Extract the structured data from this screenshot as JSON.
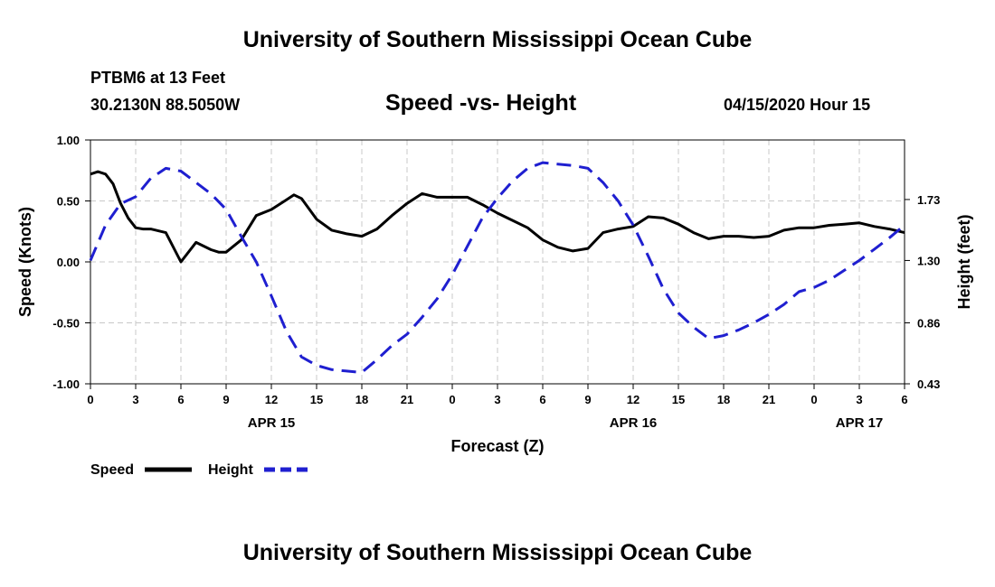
{
  "header": {
    "title": "University of Southern Mississippi Ocean Cube",
    "station": "PTBM6 at 13 Feet",
    "coords": "30.2130N 88.5050W",
    "subtitle": "Speed -vs- Height",
    "datetime": "04/15/2020 Hour 15"
  },
  "footer": {
    "title": "University of Southern Mississippi Ocean Cube"
  },
  "colors": {
    "speed": "#000000",
    "height": "#1f1fd0",
    "grid": "#c8c8c8"
  },
  "chart_data": {
    "type": "line",
    "title": "Speed -vs- Height",
    "xlabel": "Forecast (Z)",
    "ylabel": "Speed (Knots)",
    "y2label": "Height (feet)",
    "xlim": [
      0,
      54
    ],
    "ylim": [
      -1.0,
      1.0
    ],
    "y2lim": [
      0.43,
      2.15
    ],
    "x_ticks": [
      0,
      3,
      6,
      9,
      12,
      15,
      18,
      21,
      24,
      27,
      30,
      33,
      36,
      39,
      42,
      45,
      48,
      51,
      54
    ],
    "x_tick_labels": [
      "0",
      "3",
      "6",
      "9",
      "12",
      "15",
      "18",
      "21",
      "0",
      "3",
      "6",
      "9",
      "12",
      "15",
      "18",
      "21",
      "0",
      "3",
      "6"
    ],
    "y_ticks": [
      -1.0,
      -0.5,
      0.0,
      0.5,
      1.0
    ],
    "y_tick_labels": [
      "-1.00",
      "-0.50",
      "0.00",
      "0.50",
      "1.00"
    ],
    "y2_ticks": [
      0.43,
      0.86,
      1.3,
      1.73
    ],
    "y2_tick_labels": [
      "0.43",
      "0.86",
      "1.30",
      "1.73"
    ],
    "date_labels": [
      {
        "x": 12,
        "label": "APR 15"
      },
      {
        "x": 36,
        "label": "APR 16"
      },
      {
        "x": 51,
        "label": "APR 17"
      }
    ],
    "grid": true,
    "legend": {
      "position": "bottom-left"
    },
    "series": [
      {
        "name": "Speed",
        "axis": "left",
        "style": "solid",
        "x": [
          0,
          0.5,
          1,
          1.5,
          2,
          2.5,
          3,
          3.5,
          4,
          5,
          6,
          7,
          8,
          8.5,
          9,
          10,
          11,
          12,
          13,
          13.5,
          14,
          15,
          16,
          17,
          18,
          19,
          20,
          21,
          22,
          23,
          24,
          25,
          26,
          27,
          28,
          29,
          30,
          31,
          32,
          33,
          34,
          35,
          36,
          37,
          38,
          39,
          40,
          41,
          42,
          43,
          44,
          45,
          46,
          47,
          48,
          49,
          50,
          51,
          52,
          53,
          54
        ],
        "values": [
          0.72,
          0.74,
          0.72,
          0.64,
          0.48,
          0.36,
          0.28,
          0.27,
          0.27,
          0.24,
          0.0,
          0.16,
          0.1,
          0.08,
          0.08,
          0.18,
          0.38,
          0.43,
          0.51,
          0.55,
          0.52,
          0.35,
          0.26,
          0.23,
          0.21,
          0.27,
          0.38,
          0.48,
          0.56,
          0.53,
          0.53,
          0.53,
          0.47,
          0.4,
          0.34,
          0.28,
          0.18,
          0.12,
          0.09,
          0.11,
          0.24,
          0.27,
          0.29,
          0.37,
          0.36,
          0.31,
          0.24,
          0.19,
          0.21,
          0.21,
          0.2,
          0.21,
          0.26,
          0.28,
          0.28,
          0.3,
          0.31,
          0.32,
          0.29,
          0.27,
          0.24
        ]
      },
      {
        "name": "Height",
        "axis": "right",
        "style": "dashed",
        "x": [
          0,
          1,
          2,
          3,
          4,
          5,
          6,
          7,
          8,
          9,
          10,
          11,
          12,
          13,
          14,
          15,
          16,
          17,
          18,
          19,
          20,
          21,
          22,
          23,
          24,
          25,
          26,
          27,
          28,
          29,
          30,
          31,
          32,
          33,
          34,
          35,
          36,
          37,
          38,
          39,
          40,
          41,
          42,
          43,
          44,
          45,
          46,
          47,
          48,
          49,
          50,
          51,
          52,
          53,
          54
        ],
        "values": [
          1.3,
          1.55,
          1.7,
          1.75,
          1.88,
          1.95,
          1.93,
          1.85,
          1.77,
          1.66,
          1.47,
          1.29,
          1.05,
          0.8,
          0.62,
          0.56,
          0.53,
          0.52,
          0.51,
          0.6,
          0.7,
          0.78,
          0.9,
          1.03,
          1.2,
          1.4,
          1.6,
          1.74,
          1.86,
          1.95,
          1.99,
          1.98,
          1.97,
          1.95,
          1.85,
          1.72,
          1.55,
          1.33,
          1.1,
          0.93,
          0.83,
          0.75,
          0.77,
          0.81,
          0.86,
          0.92,
          0.99,
          1.08,
          1.11,
          1.16,
          1.23,
          1.3,
          1.38,
          1.46,
          1.55
        ]
      }
    ]
  },
  "legend": {
    "speed_label": "Speed",
    "height_label": "Height"
  }
}
